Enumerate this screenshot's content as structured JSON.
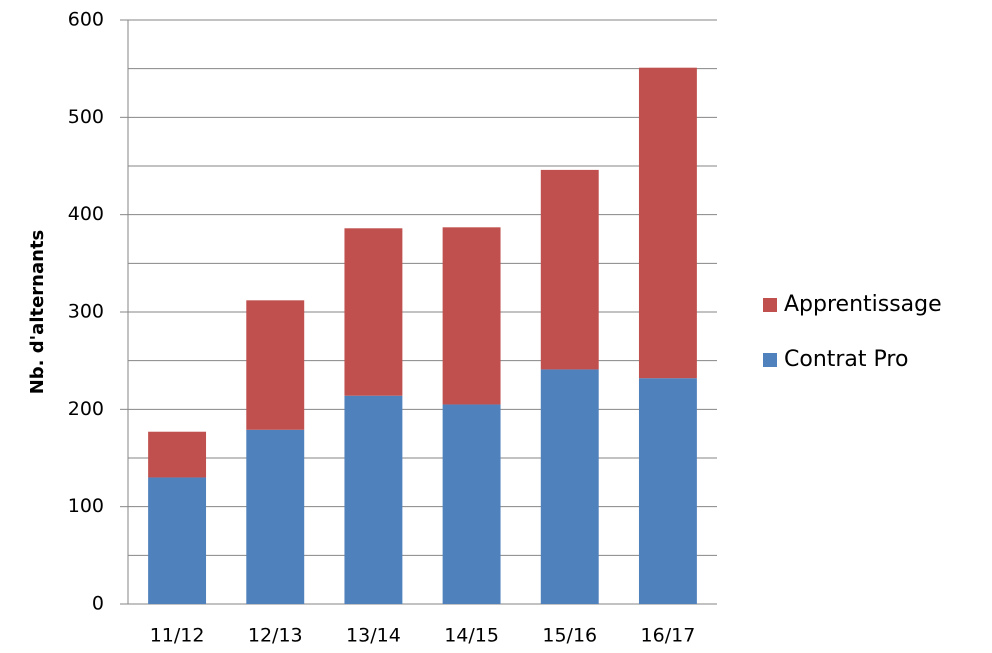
{
  "chart_data": {
    "type": "stacked_bar",
    "y_label": "Nb. d'alternants",
    "categories": [
      "11/12",
      "12/13",
      "13/14",
      "14/15",
      "15/16",
      "16/17"
    ],
    "series": [
      {
        "name": "Contrat Pro",
        "color": "#4f81bd",
        "values": [
          130,
          179,
          214,
          205,
          241,
          232
        ]
      },
      {
        "name": "Apprentissage",
        "color": "#c0504d",
        "values": [
          47,
          133,
          172,
          182,
          205,
          319
        ]
      }
    ],
    "ylim": [
      0,
      600
    ],
    "yticks": [
      0,
      100,
      200,
      300,
      400,
      500,
      600
    ],
    "minor_yticks": [
      50,
      150,
      250,
      350,
      450,
      550
    ],
    "grid": true,
    "legend": "right"
  }
}
